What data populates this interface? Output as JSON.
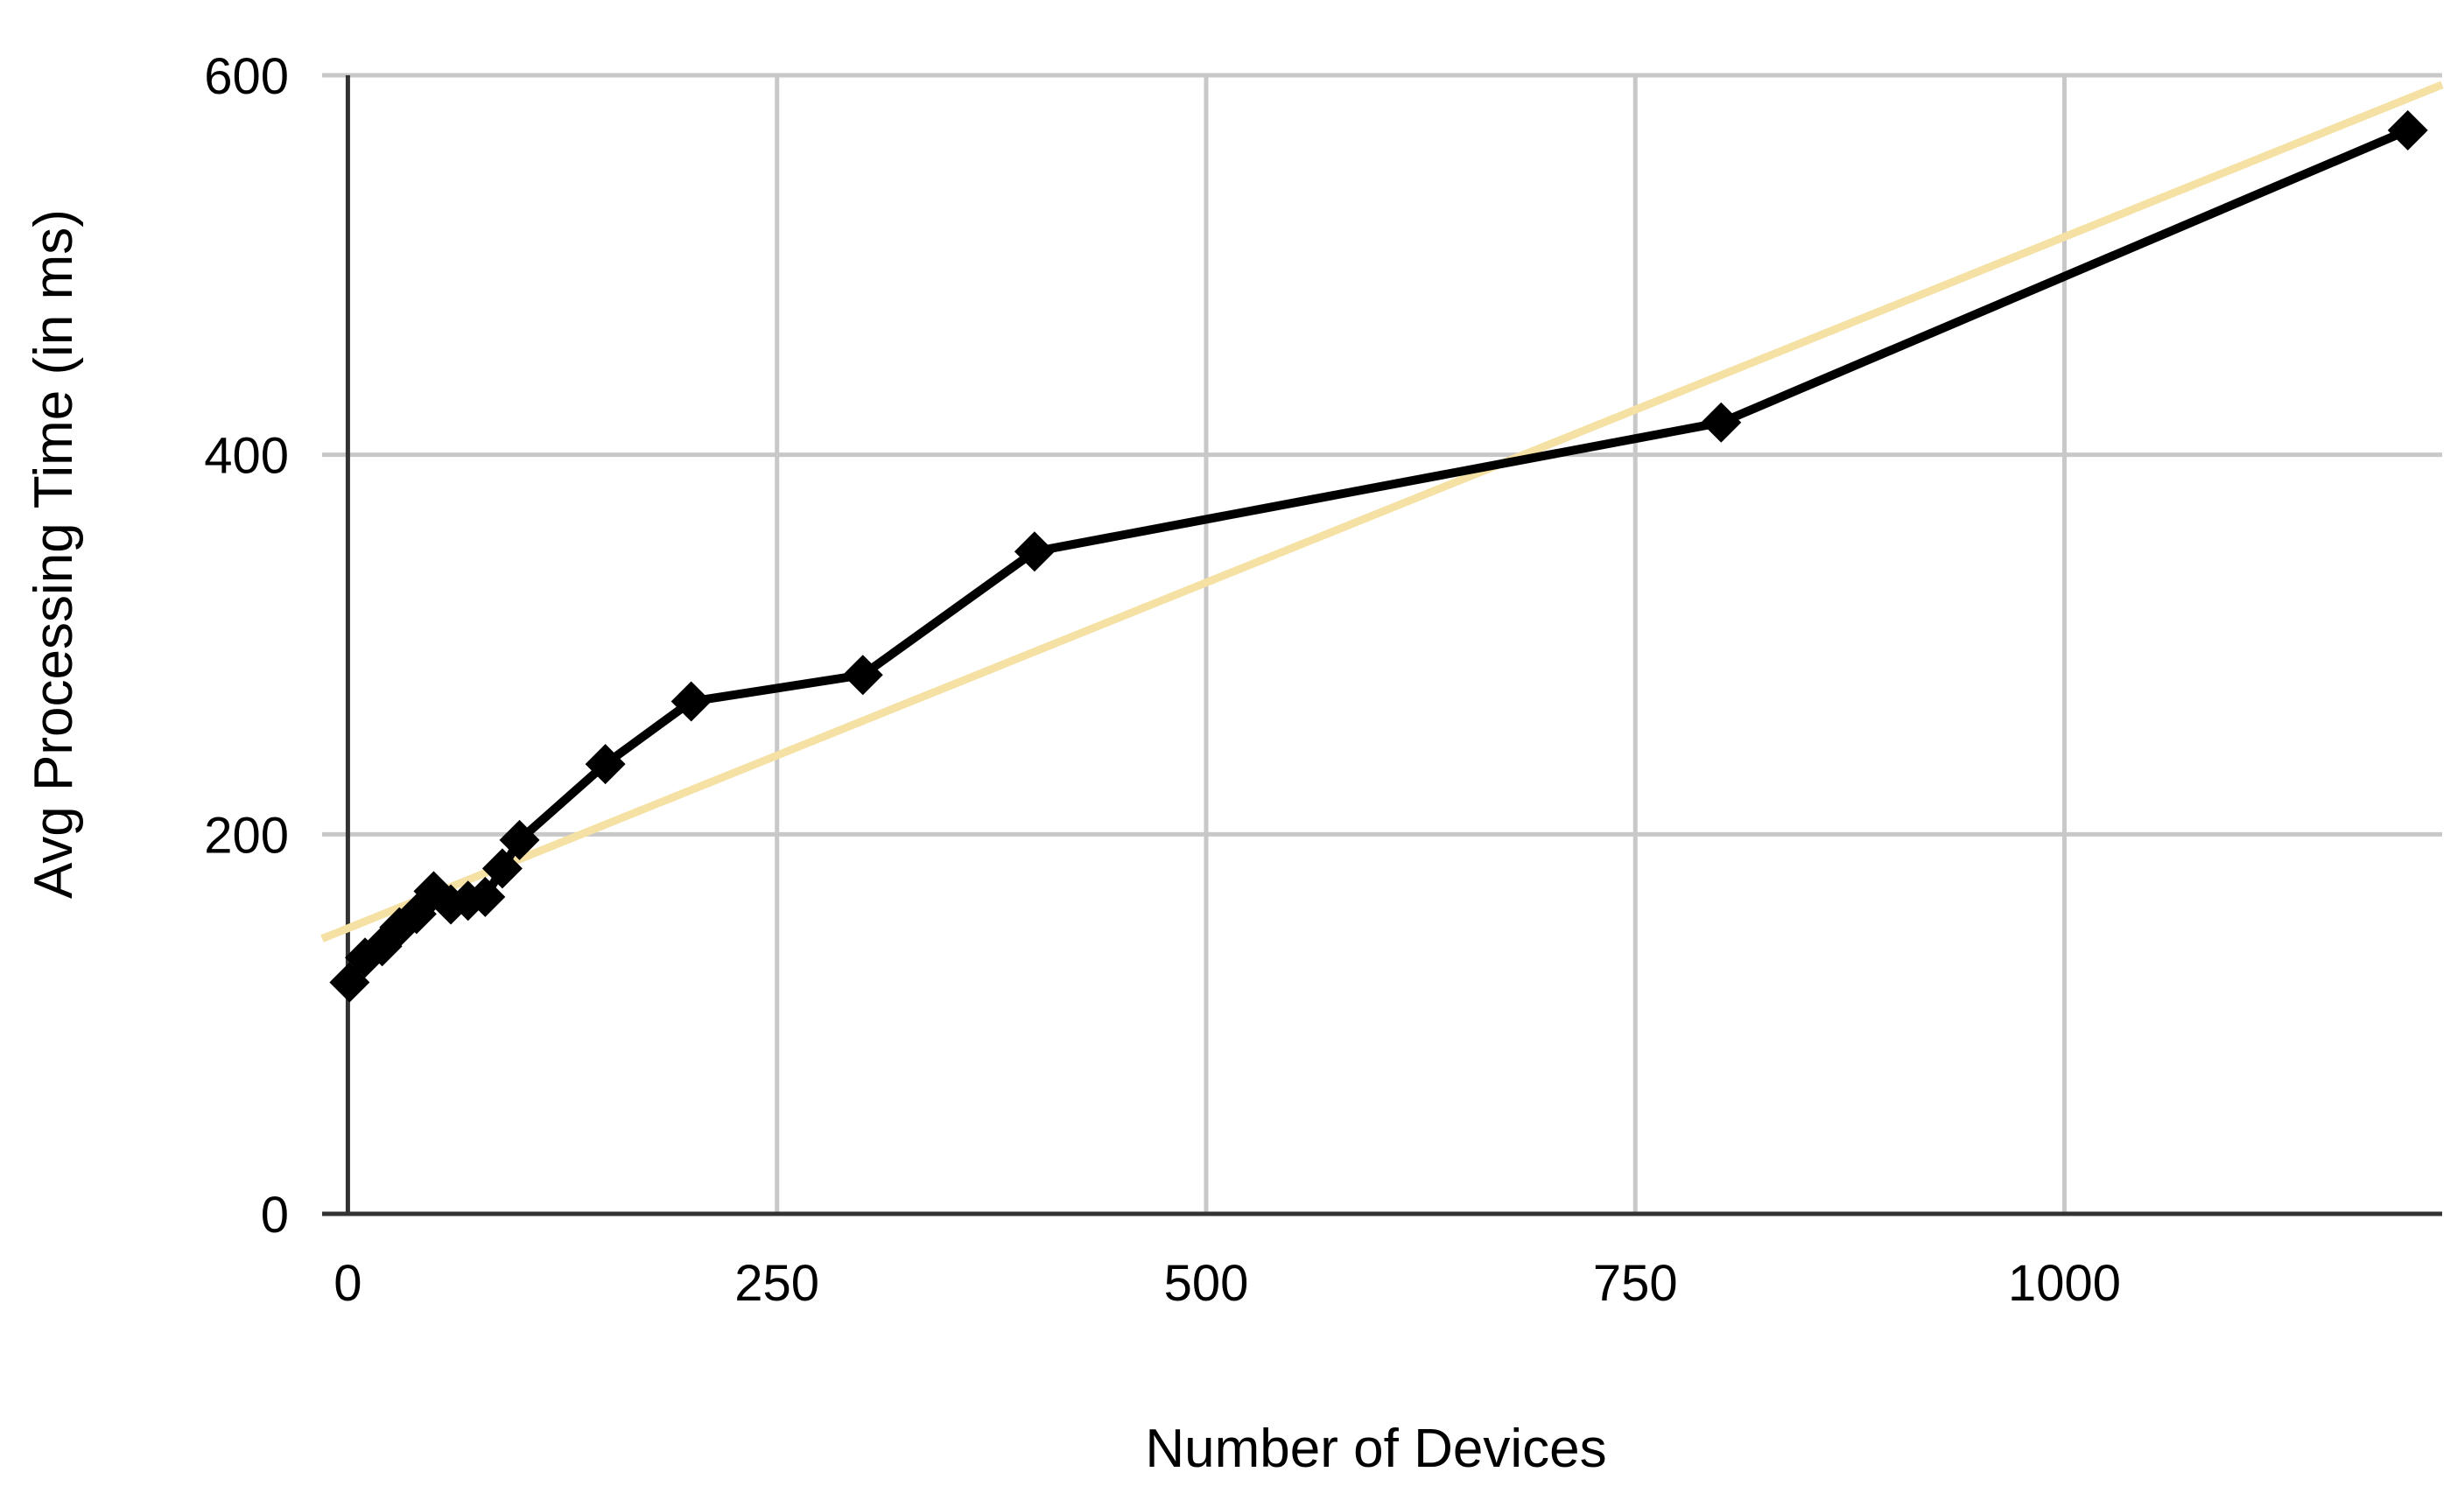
{
  "chart_data": {
    "type": "line",
    "title": "",
    "xlabel": "Number of Devices",
    "ylabel": "Avg Processing Time (in ms)",
    "xlim": [
      -15,
      1220
    ],
    "ylim": [
      0,
      600
    ],
    "x_ticks": [
      0,
      250,
      500,
      750,
      1000
    ],
    "y_ticks": [
      0,
      200,
      400,
      600
    ],
    "x_tick_labels": [
      "0",
      "250",
      "500",
      "750",
      "1000"
    ],
    "y_tick_labels": [
      "0",
      "200",
      "400",
      "600"
    ],
    "grid": true,
    "legend": "none",
    "series": [
      {
        "x": [
          1,
          10,
          20,
          30,
          40,
          50,
          60,
          70,
          80,
          90,
          100,
          150,
          200,
          300,
          400,
          800,
          1200
        ],
        "y": [
          122,
          135,
          141,
          151,
          158,
          170,
          163,
          165,
          167,
          182,
          197,
          237,
          270,
          284,
          349,
          417,
          571
        ],
        "color": "#000000",
        "marker": "diamond"
      }
    ],
    "trendline": {
      "type": "linear",
      "x": [
        -15,
        1220
      ],
      "y": [
        145,
        595
      ],
      "color": "#f5e1a4"
    },
    "colors": {
      "grid": "#c8c8c8",
      "axis": "#333333",
      "series": "#000000",
      "trendline": "#f5e1a4"
    }
  }
}
